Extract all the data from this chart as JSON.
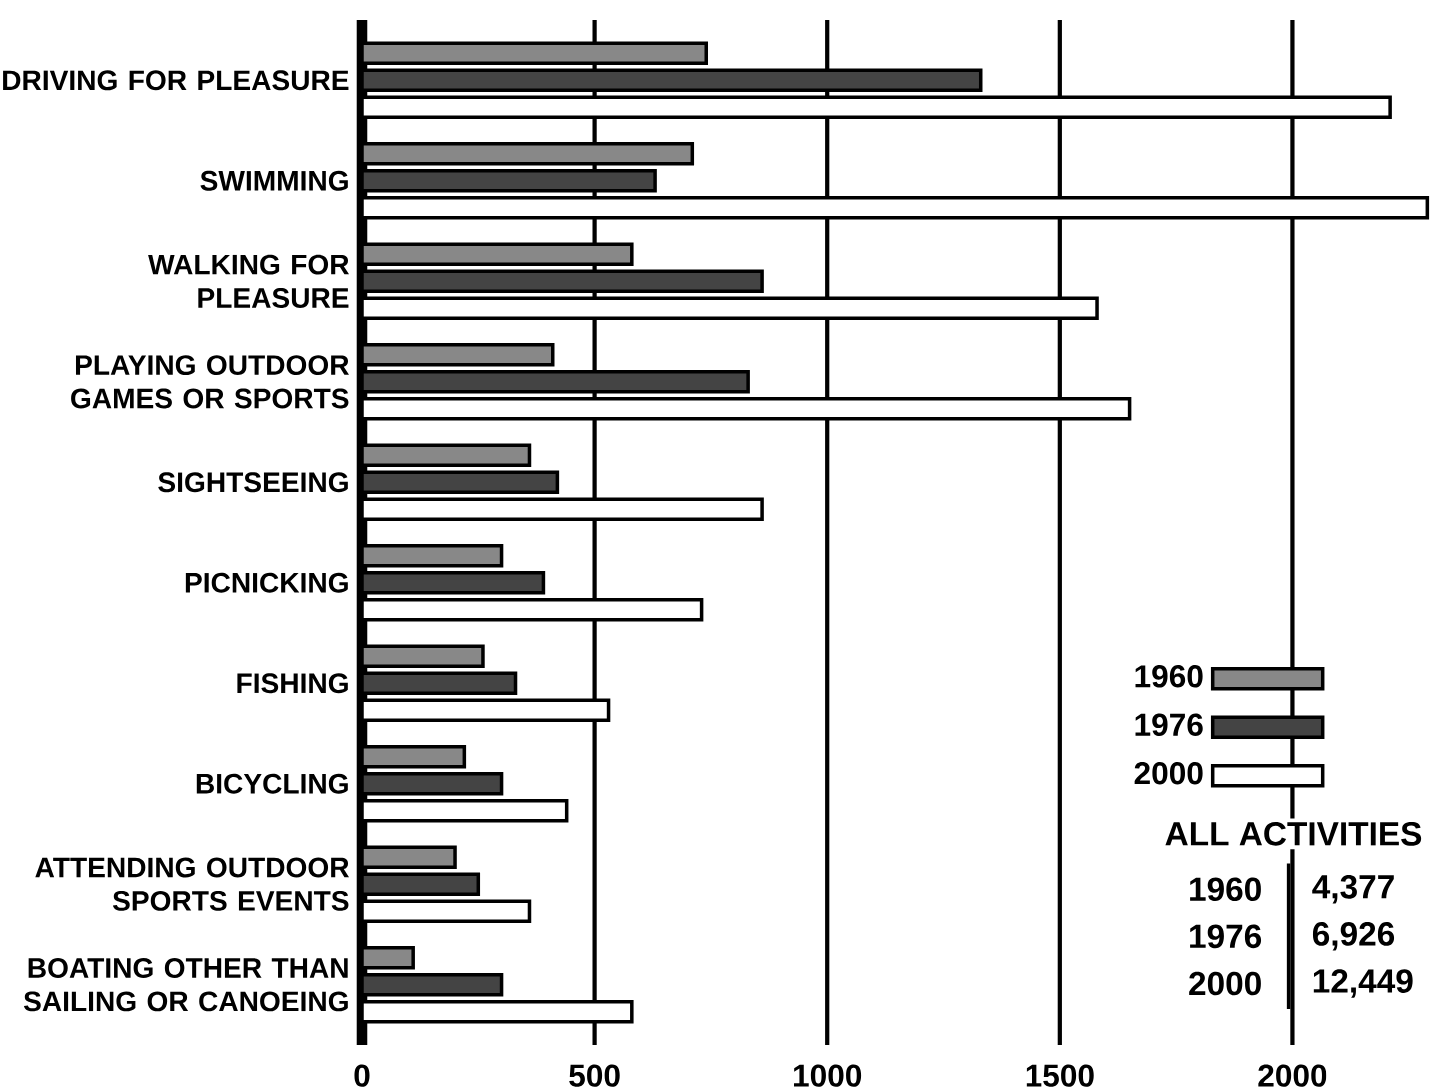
{
  "chart_data": {
    "type": "bar",
    "orientation": "horizontal",
    "categories": [
      "DRIVING FOR PLEASURE",
      "SWIMMING",
      "WALKING FOR PLEASURE",
      "PLAYING OUTDOOR GAMES OR SPORTS",
      "SIGHTSEEING",
      "PICNICKING",
      "FISHING",
      "BICYCLING",
      "ATTENDING OUTDOOR SPORTS EVENTS",
      "BOATING OTHER THAN SAILING OR CANOEING"
    ],
    "series": [
      {
        "name": "1960",
        "color": "#888888",
        "values": [
          740,
          710,
          580,
          410,
          360,
          300,
          260,
          220,
          200,
          110
        ]
      },
      {
        "name": "1976",
        "color": "#444444",
        "values": [
          1330,
          630,
          860,
          830,
          420,
          390,
          330,
          300,
          250,
          300
        ]
      },
      {
        "name": "2000",
        "color": "#ffffff",
        "values": [
          2210,
          2290,
          1580,
          1650,
          860,
          730,
          530,
          440,
          360,
          580
        ]
      }
    ],
    "xlim": [
      0,
      2300
    ],
    "xticks": [
      0,
      500,
      1000,
      1500,
      2000
    ],
    "grid": "x",
    "legend": "bottom right",
    "annotations": [
      "ALL ACTIVITIES",
      "1960",
      "4,377",
      "1976",
      "6,926",
      "2000",
      "12,449"
    ]
  }
}
